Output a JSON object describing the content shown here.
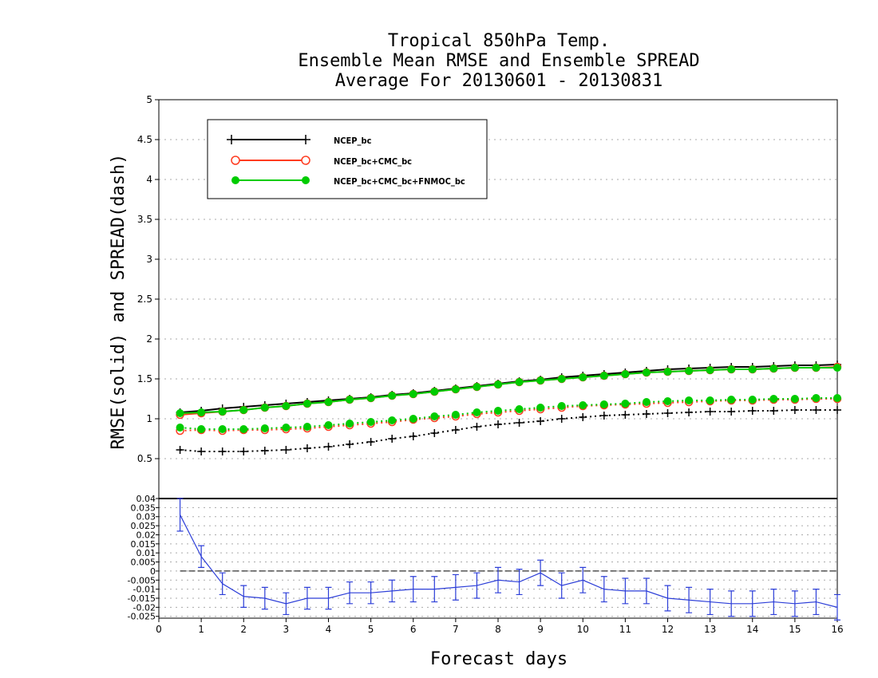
{
  "chart_data": [
    {
      "type": "line",
      "title_lines": [
        "Tropical 850hPa Temp.",
        "Ensemble Mean RMSE and Ensemble SPREAD",
        "Average For 20130601 - 20130831"
      ],
      "ylabel": "RMSE(solid) and SPREAD(dash)",
      "xlim": [
        0,
        16
      ],
      "ylim": [
        0,
        5
      ],
      "yticks": [
        "0.5",
        "1",
        "1.5",
        "2",
        "2.5",
        "3",
        "3.5",
        "4",
        "4.5",
        "5"
      ],
      "grid": true,
      "legend_position": "top-left",
      "x": [
        0.5,
        1,
        1.5,
        2,
        2.5,
        3,
        3.5,
        4,
        4.5,
        5,
        5.5,
        6,
        6.5,
        7,
        7.5,
        8,
        8.5,
        9,
        9.5,
        10,
        10.5,
        11,
        11.5,
        12,
        12.5,
        13,
        13.5,
        14,
        14.5,
        15,
        15.5,
        16
      ],
      "series": [
        {
          "name": "NCEP_bc",
          "color": "#000000",
          "marker": "plus",
          "rmse": [
            1.08,
            1.1,
            1.13,
            1.15,
            1.17,
            1.19,
            1.21,
            1.23,
            1.25,
            1.27,
            1.3,
            1.32,
            1.35,
            1.38,
            1.41,
            1.44,
            1.47,
            1.49,
            1.52,
            1.54,
            1.56,
            1.58,
            1.6,
            1.62,
            1.63,
            1.64,
            1.65,
            1.65,
            1.66,
            1.67,
            1.67,
            1.68
          ],
          "spread": [
            0.61,
            0.59,
            0.59,
            0.59,
            0.6,
            0.61,
            0.63,
            0.65,
            0.68,
            0.71,
            0.75,
            0.78,
            0.82,
            0.86,
            0.9,
            0.93,
            0.95,
            0.97,
            1.0,
            1.02,
            1.04,
            1.05,
            1.06,
            1.07,
            1.08,
            1.09,
            1.09,
            1.1,
            1.1,
            1.11,
            1.11,
            1.11
          ]
        },
        {
          "name": "NCEP_bc+CMC_bc",
          "color": "#ff3b1f",
          "marker": "open-circle",
          "rmse": [
            1.05,
            1.07,
            1.09,
            1.11,
            1.14,
            1.16,
            1.19,
            1.21,
            1.24,
            1.26,
            1.29,
            1.31,
            1.34,
            1.37,
            1.4,
            1.43,
            1.46,
            1.48,
            1.5,
            1.52,
            1.54,
            1.56,
            1.58,
            1.59,
            1.6,
            1.61,
            1.62,
            1.62,
            1.63,
            1.64,
            1.64,
            1.65
          ],
          "spread": [
            0.85,
            0.86,
            0.85,
            0.86,
            0.86,
            0.87,
            0.88,
            0.9,
            0.92,
            0.94,
            0.96,
            0.99,
            1.01,
            1.03,
            1.06,
            1.08,
            1.1,
            1.12,
            1.14,
            1.16,
            1.17,
            1.18,
            1.19,
            1.2,
            1.21,
            1.22,
            1.23,
            1.23,
            1.24,
            1.24,
            1.25,
            1.25
          ]
        },
        {
          "name": "NCEP_bc+CMC_bc+FNMOC_bc",
          "color": "#00cc00",
          "marker": "filled-circle",
          "rmse": [
            1.07,
            1.08,
            1.09,
            1.11,
            1.14,
            1.16,
            1.19,
            1.21,
            1.24,
            1.26,
            1.29,
            1.31,
            1.34,
            1.37,
            1.4,
            1.43,
            1.46,
            1.48,
            1.5,
            1.52,
            1.54,
            1.56,
            1.58,
            1.59,
            1.6,
            1.61,
            1.62,
            1.62,
            1.63,
            1.64,
            1.64,
            1.64
          ],
          "spread": [
            0.89,
            0.87,
            0.87,
            0.87,
            0.88,
            0.89,
            0.9,
            0.92,
            0.94,
            0.96,
            0.98,
            1.0,
            1.03,
            1.05,
            1.08,
            1.1,
            1.12,
            1.14,
            1.16,
            1.17,
            1.18,
            1.19,
            1.21,
            1.22,
            1.23,
            1.23,
            1.24,
            1.24,
            1.25,
            1.25,
            1.26,
            1.26
          ]
        }
      ]
    },
    {
      "type": "line",
      "subtype": "errorbar",
      "xlabel": "Forecast days",
      "xlim": [
        0,
        16
      ],
      "xticks": [
        "0",
        "1",
        "2",
        "3",
        "4",
        "5",
        "6",
        "7",
        "8",
        "9",
        "10",
        "11",
        "12",
        "13",
        "14",
        "15",
        "16"
      ],
      "ylim": [
        -0.026,
        0.04
      ],
      "yticks": [
        "0.04",
        "0.035",
        "0.03",
        "0.025",
        "0.02",
        "0.015",
        "0.01",
        "0.005",
        "0",
        "-0.005",
        "-0.01",
        "-0.015",
        "-0.02",
        "-0.025"
      ],
      "ytick_values": [
        0.04,
        0.035,
        0.03,
        0.025,
        0.02,
        0.015,
        0.01,
        0.005,
        0,
        -0.005,
        -0.01,
        -0.015,
        -0.02,
        -0.025
      ],
      "grid": true,
      "color": "#2c3ed8",
      "zero_line_xrange": [
        0.5,
        16
      ],
      "x": [
        0.5,
        1,
        1.5,
        2,
        2.5,
        3,
        3.5,
        4,
        4.5,
        5,
        5.5,
        6,
        6.5,
        7,
        7.5,
        8,
        8.5,
        9,
        9.5,
        10,
        10.5,
        11,
        11.5,
        12,
        12.5,
        13,
        13.5,
        14,
        14.5,
        15,
        15.5,
        16
      ],
      "values": [
        0.031,
        0.008,
        -0.007,
        -0.014,
        -0.015,
        -0.018,
        -0.015,
        -0.015,
        -0.012,
        -0.012,
        -0.011,
        -0.01,
        -0.01,
        -0.009,
        -0.008,
        -0.005,
        -0.006,
        -0.001,
        -0.008,
        -0.005,
        -0.01,
        -0.011,
        -0.011,
        -0.015,
        -0.016,
        -0.017,
        -0.018,
        -0.018,
        -0.017,
        -0.018,
        -0.017,
        -0.02
      ],
      "errors": [
        0.009,
        0.006,
        0.006,
        0.006,
        0.006,
        0.006,
        0.006,
        0.006,
        0.006,
        0.006,
        0.006,
        0.007,
        0.007,
        0.007,
        0.007,
        0.007,
        0.007,
        0.007,
        0.007,
        0.007,
        0.007,
        0.007,
        0.007,
        0.007,
        0.007,
        0.007,
        0.007,
        0.007,
        0.007,
        0.007,
        0.007,
        0.007
      ]
    }
  ]
}
